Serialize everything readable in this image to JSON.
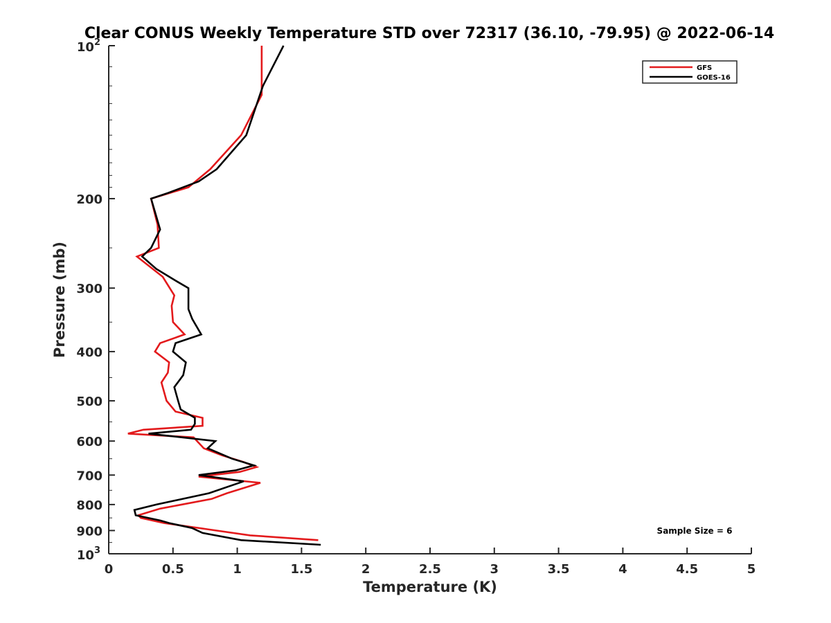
{
  "chart_data": {
    "type": "line",
    "title": "Clear CONUS Weekly Temperature STD over 72317 (36.10, -79.95) @ 2022-06-14",
    "xlabel": "Temperature (K)",
    "ylabel": "Pressure (mb)",
    "xlim": [
      0,
      5
    ],
    "ylim": [
      1000,
      100
    ],
    "y_scale": "log",
    "grid": false,
    "legend_position": "top-right",
    "x_ticks": [
      "0",
      "0.5",
      "1",
      "1.5",
      "2",
      "2.5",
      "3",
      "3.5",
      "4",
      "4.5",
      "5"
    ],
    "y_ticks": [
      {
        "value": 100,
        "base": "10",
        "exp": "2"
      },
      {
        "value": 200,
        "label": "200"
      },
      {
        "value": 300,
        "label": "300"
      },
      {
        "value": 400,
        "label": "400"
      },
      {
        "value": 500,
        "label": "500"
      },
      {
        "value": 600,
        "label": "600"
      },
      {
        "value": 700,
        "label": "700"
      },
      {
        "value": 800,
        "label": "800"
      },
      {
        "value": 900,
        "label": "900"
      },
      {
        "value": 1000,
        "base": "10",
        "exp": "3"
      }
    ],
    "annotation": "Sample Size = 6",
    "series": [
      {
        "name": "GFS",
        "color": "#e31a1c",
        "points": [
          [
            1.19,
            100
          ],
          [
            1.19,
            125
          ],
          [
            1.03,
            150
          ],
          [
            0.79,
            175
          ],
          [
            0.62,
            190
          ],
          [
            0.33,
            200
          ],
          [
            0.38,
            225
          ],
          [
            0.39,
            250
          ],
          [
            0.22,
            260
          ],
          [
            0.42,
            285
          ],
          [
            0.51,
            310
          ],
          [
            0.49,
            325
          ],
          [
            0.5,
            350
          ],
          [
            0.59,
            370
          ],
          [
            0.4,
            385
          ],
          [
            0.36,
            400
          ],
          [
            0.47,
            420
          ],
          [
            0.46,
            440
          ],
          [
            0.41,
            460
          ],
          [
            0.45,
            500
          ],
          [
            0.52,
            525
          ],
          [
            0.73,
            540
          ],
          [
            0.73,
            560
          ],
          [
            0.27,
            570
          ],
          [
            0.15,
            580
          ],
          [
            0.66,
            590
          ],
          [
            0.74,
            620
          ],
          [
            0.88,
            640
          ],
          [
            1.05,
            660
          ],
          [
            1.15,
            675
          ],
          [
            1.02,
            690
          ],
          [
            0.7,
            705
          ],
          [
            1.18,
            725
          ],
          [
            0.92,
            760
          ],
          [
            0.8,
            780
          ],
          [
            0.4,
            815
          ],
          [
            0.23,
            840
          ],
          [
            0.25,
            850
          ],
          [
            0.43,
            870
          ],
          [
            0.77,
            895
          ],
          [
            1.1,
            920
          ],
          [
            1.63,
            940
          ]
        ]
      },
      {
        "name": "GOES-16",
        "color": "#000000",
        "points": [
          [
            1.36,
            100
          ],
          [
            1.2,
            120
          ],
          [
            1.07,
            150
          ],
          [
            0.84,
            175
          ],
          [
            0.7,
            185
          ],
          [
            0.46,
            195
          ],
          [
            0.33,
            200
          ],
          [
            0.4,
            230
          ],
          [
            0.33,
            250
          ],
          [
            0.26,
            260
          ],
          [
            0.37,
            275
          ],
          [
            0.52,
            290
          ],
          [
            0.62,
            300
          ],
          [
            0.62,
            330
          ],
          [
            0.65,
            345
          ],
          [
            0.72,
            370
          ],
          [
            0.52,
            385
          ],
          [
            0.5,
            400
          ],
          [
            0.6,
            420
          ],
          [
            0.58,
            445
          ],
          [
            0.51,
            470
          ],
          [
            0.54,
            500
          ],
          [
            0.56,
            520
          ],
          [
            0.67,
            540
          ],
          [
            0.67,
            555
          ],
          [
            0.64,
            570
          ],
          [
            0.31,
            580
          ],
          [
            0.83,
            600
          ],
          [
            0.77,
            620
          ],
          [
            0.96,
            650
          ],
          [
            1.13,
            670
          ],
          [
            0.99,
            685
          ],
          [
            0.7,
            700
          ],
          [
            1.05,
            720
          ],
          [
            0.78,
            760
          ],
          [
            0.37,
            800
          ],
          [
            0.2,
            820
          ],
          [
            0.21,
            840
          ],
          [
            0.4,
            860
          ],
          [
            0.47,
            870
          ],
          [
            0.65,
            890
          ],
          [
            0.73,
            910
          ],
          [
            1.03,
            940
          ],
          [
            1.65,
            960
          ]
        ]
      }
    ]
  }
}
